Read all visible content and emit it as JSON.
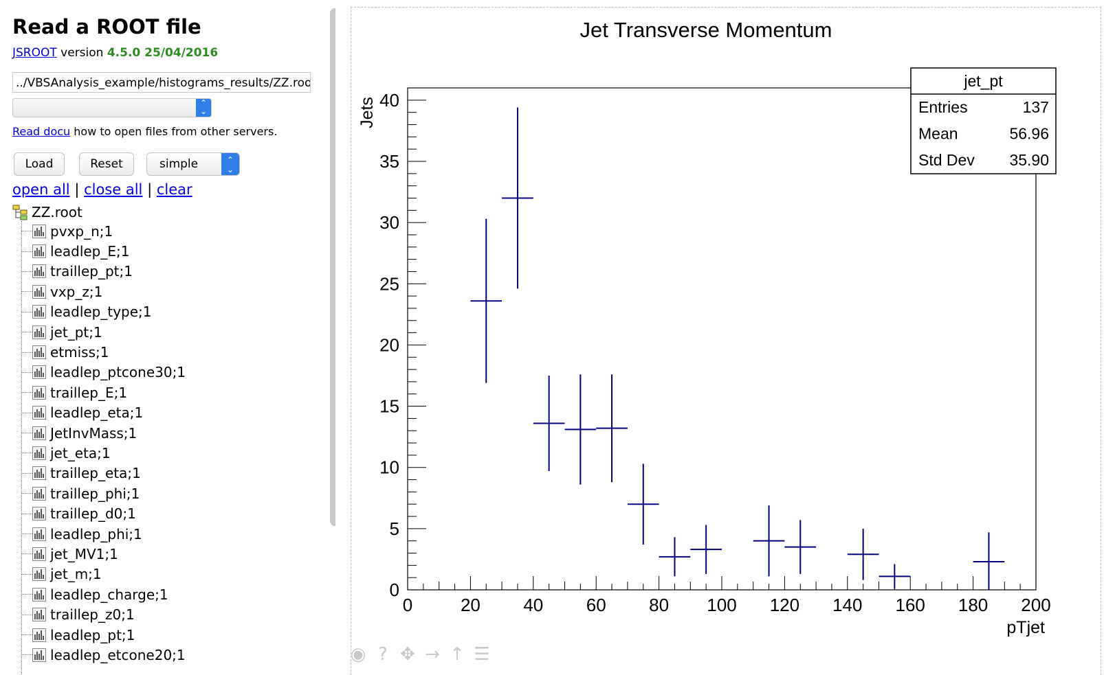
{
  "left": {
    "title": "Read a ROOT file",
    "jsroot_link": "JSROOT",
    "version_word": "version",
    "version_value": "4.5.0 25/04/2016",
    "file_input": "../VBSAnalysis_example/histograms_results/ZZ.root",
    "docu_link": "Read docu",
    "docu_text": "how to open files from other servers.",
    "buttons": {
      "load": "Load",
      "reset": "Reset",
      "layout": "simple"
    },
    "links": {
      "open_all": "open all",
      "sep": "|",
      "close_all": "close all",
      "clear": "clear"
    },
    "root_file": "ZZ.root",
    "items": [
      "pvxp_n;1",
      "leadlep_E;1",
      "traillep_pt;1",
      "vxp_z;1",
      "leadlep_type;1",
      "jet_pt;1",
      "etmiss;1",
      "leadlep_ptcone30;1",
      "traillep_E;1",
      "leadlep_eta;1",
      "JetInvMass;1",
      "jet_eta;1",
      "traillep_eta;1",
      "traillep_phi;1",
      "traillep_d0;1",
      "leadlep_phi;1",
      "jet_MV1;1",
      "jet_m;1",
      "leadlep_charge;1",
      "traillep_z0;1",
      "leadlep_pt;1",
      "leadlep_etcone20;1"
    ]
  },
  "chart_data": {
    "type": "histogram-errorbars",
    "title": "Jet Transverse Momentum",
    "xlabel": "pTjet",
    "ylabel": "Jets",
    "xlim": [
      0,
      200
    ],
    "ylim": [
      0,
      41
    ],
    "xticks": [
      0,
      20,
      40,
      60,
      80,
      100,
      120,
      140,
      160,
      180,
      200
    ],
    "yticks": [
      0,
      5,
      10,
      15,
      20,
      25,
      30,
      35,
      40
    ],
    "color": "#000080",
    "points": [
      {
        "x": 25,
        "y": 23.6,
        "err": 6.7
      },
      {
        "x": 35,
        "y": 32,
        "err": 7.4
      },
      {
        "x": 45,
        "y": 13.6,
        "err": 3.9
      },
      {
        "x": 55,
        "y": 13.1,
        "err": 4.5
      },
      {
        "x": 65,
        "y": 13.2,
        "err": 4.4
      },
      {
        "x": 75,
        "y": 7,
        "err": 3.3
      },
      {
        "x": 85,
        "y": 2.7,
        "err": 1.6
      },
      {
        "x": 95,
        "y": 3.3,
        "err": 2
      },
      {
        "x": 115,
        "y": 4,
        "err": 2.9
      },
      {
        "x": 125,
        "y": 3.5,
        "err": 2.2
      },
      {
        "x": 145,
        "y": 2.9,
        "err": 2.1
      },
      {
        "x": 155,
        "y": 1.1,
        "err": 1
      },
      {
        "x": 185,
        "y": 2.3,
        "err": 2.4
      }
    ],
    "stats": {
      "name": "jet_pt",
      "rows": [
        [
          "Entries",
          "137"
        ],
        [
          "Mean",
          "56.96"
        ],
        [
          "Std Dev",
          "35.90"
        ]
      ]
    }
  }
}
